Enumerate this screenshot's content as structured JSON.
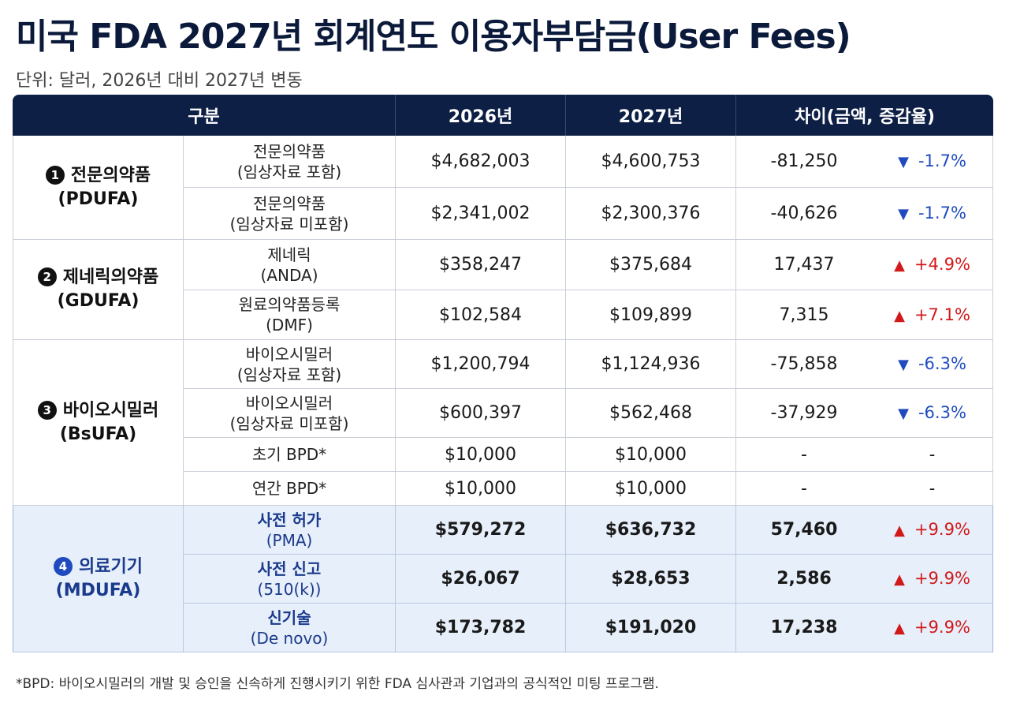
{
  "title": "미국 FDA 2027년 회계연도 이용자부담금(User Fees)",
  "subtitle": "단위: 달러, 2026년 대비 2027년 변동",
  "headers": {
    "category": "구분",
    "y2026": "2026년",
    "y2027": "2027년",
    "diff": "차이(금액, 증감율)"
  },
  "groups": [
    {
      "num": "1",
      "name": "전문의약품",
      "code": "(PDUFA)",
      "rows": [
        {
          "item": "전문의약품",
          "sub": "(임상자료 포함)",
          "y2026": "$4,682,003",
          "y2027": "$4,600,753",
          "diff": "-81,250",
          "arrow": "▼",
          "pct": "-1.7%",
          "dir": "down"
        },
        {
          "item": "전문의약품",
          "sub": "(임상자료 미포함)",
          "y2026": "$2,341,002",
          "y2027": "$2,300,376",
          "diff": "-40,626",
          "arrow": "▼",
          "pct": "-1.7%",
          "dir": "down"
        }
      ]
    },
    {
      "num": "2",
      "name": "제네릭의약품",
      "code": "(GDUFA)",
      "rows": [
        {
          "item": "제네릭",
          "sub": "(ANDA)",
          "y2026": "$358,247",
          "y2027": "$375,684",
          "diff": "17,437",
          "arrow": "▲",
          "pct": "+4.9%",
          "dir": "up"
        },
        {
          "item": "원료의약품등록",
          "sub": "(DMF)",
          "y2026": "$102,584",
          "y2027": "$109,899",
          "diff": "7,315",
          "arrow": "▲",
          "pct": "+7.1%",
          "dir": "up"
        }
      ]
    },
    {
      "num": "3",
      "name": "바이오시밀러",
      "code": "(BsUFA)",
      "rows": [
        {
          "item": "바이오시밀러",
          "sub": "(임상자료 포함)",
          "y2026": "$1,200,794",
          "y2027": "$1,124,936",
          "diff": "-75,858",
          "arrow": "▼",
          "pct": "-6.3%",
          "dir": "down"
        },
        {
          "item": "바이오시밀러",
          "sub": "(임상자료 미포함)",
          "y2026": "$600,397",
          "y2027": "$562,468",
          "diff": "-37,929",
          "arrow": "▼",
          "pct": "-6.3%",
          "dir": "down"
        },
        {
          "item": "초기 BPD*",
          "sub": "",
          "y2026": "$10,000",
          "y2027": "$10,000",
          "diff": "-",
          "arrow": "",
          "pct": "-",
          "dir": "none"
        },
        {
          "item": "연간 BPD*",
          "sub": "",
          "y2026": "$10,000",
          "y2027": "$10,000",
          "diff": "-",
          "arrow": "",
          "pct": "-",
          "dir": "none"
        }
      ]
    },
    {
      "num": "4",
      "name": "의료기기",
      "code": "(MDUFA)",
      "highlight": true,
      "rows": [
        {
          "item": "사전 허가",
          "sub": "(PMA)",
          "y2026": "$579,272",
          "y2027": "$636,732",
          "diff": "57,460",
          "arrow": "▲",
          "pct": "+9.9%",
          "dir": "up"
        },
        {
          "item": "사전 신고",
          "sub": "(510(k))",
          "y2026": "$26,067",
          "y2027": "$28,653",
          "diff": "2,586",
          "arrow": "▲",
          "pct": "+9.9%",
          "dir": "up"
        },
        {
          "item": "신기술",
          "sub": "(De novo)",
          "y2026": "$173,782",
          "y2027": "$191,020",
          "diff": "17,238",
          "arrow": "▲",
          "pct": "+9.9%",
          "dir": "up"
        }
      ]
    }
  ],
  "footnote": "*BPD: 바이오시밀러의 개발 및 승인을 신속하게 진행시키기 위한 FDA 심사관과 기업과의 공식적인 미팅 프로그램."
}
